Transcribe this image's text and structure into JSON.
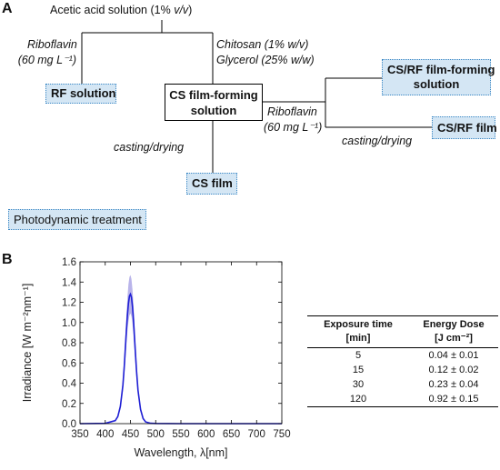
{
  "panel_a": {
    "letter": "A",
    "root": {
      "text": "Acetic acid solution (1% ",
      "unit": "v/v",
      "close": ")"
    },
    "left_branch": {
      "line1": "Riboflavin",
      "line2": "(60 mg L⁻¹)"
    },
    "center_branch": {
      "line1": "Chitosan (1% w/v)",
      "line2": "Glycerol (25% w/w)"
    },
    "rf_solution": "RF solution",
    "cs_solution": {
      "line1": "CS film-forming",
      "line2": "solution"
    },
    "right_branch": {
      "line1": "Riboflavin",
      "line2": "(60 mg L⁻¹)"
    },
    "csrf_solution": {
      "line1": "CS/RF film-forming",
      "line2": "solution"
    },
    "casting_center": "casting/drying",
    "casting_right": "casting/drying",
    "cs_film": "CS film",
    "csrf_film": "CS/RF film",
    "treatment": "Photodynamic treatment"
  },
  "panel_b": {
    "letter": "B",
    "chart_data": {
      "type": "line",
      "title": "",
      "xlabel": "Wavelength, λ[nm]",
      "ylabel": "Irradiance [W m⁻²nm⁻¹]",
      "xlim": [
        350,
        750
      ],
      "ylim": [
        0.0,
        1.6
      ],
      "xticks": [
        350,
        400,
        450,
        500,
        550,
        600,
        650,
        700,
        750
      ],
      "yticks": [
        0.0,
        0.2,
        0.4,
        0.6,
        0.8,
        1.0,
        1.2,
        1.4,
        1.6
      ],
      "x": [
        350,
        400,
        420,
        425,
        430,
        435,
        438,
        440,
        442,
        444,
        446,
        448,
        450,
        452,
        454,
        456,
        458,
        460,
        462,
        465,
        470,
        475,
        480,
        490,
        500,
        550,
        600,
        650,
        700,
        750
      ],
      "series": [
        {
          "values": [
            0,
            0.003,
            0.03,
            0.07,
            0.17,
            0.38,
            0.58,
            0.75,
            0.93,
            1.08,
            1.19,
            1.26,
            1.28,
            1.25,
            1.16,
            1.03,
            0.86,
            0.68,
            0.52,
            0.33,
            0.14,
            0.05,
            0.017,
            0.004,
            0.002,
            0,
            0,
            0,
            0,
            0
          ],
          "upper": [
            0,
            0.004,
            0.035,
            0.08,
            0.2,
            0.44,
            0.67,
            0.87,
            1.07,
            1.25,
            1.38,
            1.45,
            1.47,
            1.43,
            1.33,
            1.18,
            0.99,
            0.78,
            0.6,
            0.38,
            0.16,
            0.06,
            0.02,
            0.005,
            0.002,
            0,
            0,
            0,
            0,
            0
          ],
          "lower": [
            0,
            0.002,
            0.025,
            0.06,
            0.14,
            0.32,
            0.49,
            0.63,
            0.79,
            0.92,
            1.01,
            1.07,
            1.09,
            1.06,
            0.99,
            0.88,
            0.73,
            0.58,
            0.44,
            0.28,
            0.12,
            0.04,
            0.014,
            0.003,
            0.001,
            0,
            0,
            0,
            0,
            0
          ]
        }
      ],
      "grid": false,
      "colors": {
        "line": "#1f1fd4",
        "band": "#b9b4ea"
      }
    },
    "table": {
      "headers": [
        {
          "line1": "Exposure time",
          "line2": "[min]"
        },
        {
          "line1": "Energy Dose",
          "line2": "[J cm⁻²]"
        }
      ],
      "rows": [
        [
          "5",
          "0.04 ± 0.01"
        ],
        [
          "15",
          "0.12 ± 0.02"
        ],
        [
          "30",
          "0.23 ± 0.04"
        ],
        [
          "120",
          "0.92 ± 0.15"
        ]
      ]
    }
  }
}
